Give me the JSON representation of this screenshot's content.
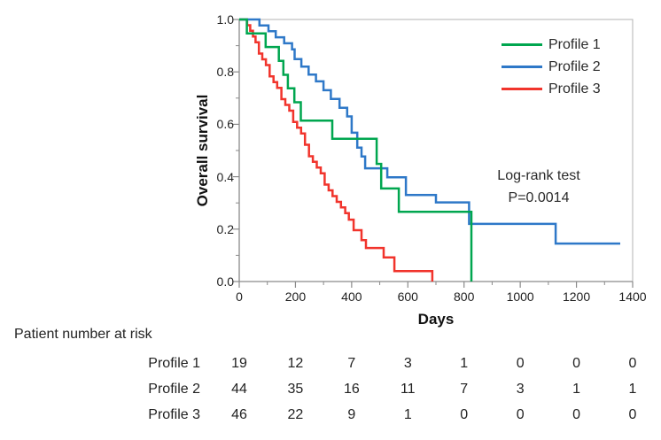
{
  "chart_data": {
    "type": "line",
    "subtype": "kaplan-meier-step-survival",
    "title": "",
    "xlabel": "Days",
    "ylabel": "Overall survival",
    "xlim": [
      0,
      1400
    ],
    "ylim": [
      0.0,
      1.0
    ],
    "grid": false,
    "x_ticks": [
      0,
      200,
      400,
      600,
      800,
      1000,
      1200,
      1400
    ],
    "x_tick_labels": [
      "0",
      "200",
      "400",
      "600",
      "800",
      "1000",
      "1200",
      "1400"
    ],
    "x_minor_ticks": [
      100,
      300,
      500,
      700,
      900,
      1100,
      1300
    ],
    "y_ticks": [
      1.0,
      0.8,
      0.6,
      0.4,
      0.2,
      0.0
    ],
    "y_tick_labels": [
      "1.0",
      "0.8",
      "0.6",
      "0.4",
      "0.2",
      "0.0"
    ],
    "y_minor_ticks": [
      0.9,
      0.7,
      0.5,
      0.3,
      0.1
    ],
    "frame_color": "#b3b3b3",
    "axis_color": "#8a8a8a",
    "legend": {
      "position": "top-right",
      "entries": [
        {
          "label": "Profile 1",
          "color": "#00a64f"
        },
        {
          "label": "Profile 2",
          "color": "#2e78c8"
        },
        {
          "label": "Profile 3",
          "color": "#f1342c"
        }
      ]
    },
    "annotation": {
      "lines": [
        "Log-rank test",
        "P=0.0014"
      ]
    },
    "series": [
      {
        "name": "Profile 1",
        "color": "#00a64f",
        "end": "event",
        "points": [
          [
            27,
            0.947
          ],
          [
            94,
            0.895
          ],
          [
            141,
            0.842
          ],
          [
            157,
            0.789
          ],
          [
            173,
            0.737
          ],
          [
            196,
            0.684
          ],
          [
            219,
            0.614
          ],
          [
            331,
            0.545
          ],
          [
            489,
            0.449
          ],
          [
            505,
            0.355
          ],
          [
            568,
            0.266
          ],
          [
            826,
            0.0
          ]
        ]
      },
      {
        "name": "Profile 2",
        "color": "#2e78c8",
        "end": "censored",
        "points": [
          [
            72,
            0.977
          ],
          [
            104,
            0.955
          ],
          [
            130,
            0.932
          ],
          [
            160,
            0.909
          ],
          [
            188,
            0.886
          ],
          [
            197,
            0.849
          ],
          [
            221,
            0.82
          ],
          [
            247,
            0.79
          ],
          [
            273,
            0.764
          ],
          [
            300,
            0.73
          ],
          [
            326,
            0.697
          ],
          [
            357,
            0.663
          ],
          [
            384,
            0.63
          ],
          [
            400,
            0.568
          ],
          [
            420,
            0.511
          ],
          [
            435,
            0.477
          ],
          [
            448,
            0.432
          ],
          [
            527,
            0.398
          ],
          [
            593,
            0.33
          ],
          [
            700,
            0.302
          ],
          [
            818,
            0.22
          ],
          [
            1126,
            0.145
          ],
          [
            1356,
            0.145
          ]
        ]
      },
      {
        "name": "Profile 3",
        "color": "#f1342c",
        "end": "event",
        "points": [
          [
            28,
            0.978
          ],
          [
            39,
            0.957
          ],
          [
            49,
            0.935
          ],
          [
            58,
            0.913
          ],
          [
            70,
            0.87
          ],
          [
            82,
            0.848
          ],
          [
            95,
            0.826
          ],
          [
            108,
            0.783
          ],
          [
            122,
            0.761
          ],
          [
            135,
            0.739
          ],
          [
            150,
            0.696
          ],
          [
            164,
            0.674
          ],
          [
            178,
            0.652
          ],
          [
            192,
            0.609
          ],
          [
            206,
            0.587
          ],
          [
            220,
            0.565
          ],
          [
            234,
            0.522
          ],
          [
            248,
            0.478
          ],
          [
            262,
            0.457
          ],
          [
            276,
            0.435
          ],
          [
            290,
            0.413
          ],
          [
            304,
            0.37
          ],
          [
            318,
            0.348
          ],
          [
            332,
            0.326
          ],
          [
            347,
            0.304
          ],
          [
            362,
            0.283
          ],
          [
            377,
            0.261
          ],
          [
            390,
            0.236
          ],
          [
            407,
            0.196
          ],
          [
            435,
            0.158
          ],
          [
            451,
            0.128
          ],
          [
            514,
            0.092
          ],
          [
            552,
            0.04
          ],
          [
            687,
            0.0
          ]
        ]
      }
    ]
  },
  "risk_table": {
    "title": "Patient number at risk",
    "time_points": [
      0,
      200,
      400,
      600,
      800,
      1000,
      1200,
      1400
    ],
    "rows": [
      {
        "label": "Profile 1",
        "counts": [
          "19",
          "12",
          "7",
          "3",
          "1",
          "0",
          "0",
          "0"
        ]
      },
      {
        "label": "Profile 2",
        "counts": [
          "44",
          "35",
          "16",
          "11",
          "7",
          "3",
          "1",
          "1"
        ]
      },
      {
        "label": "Profile 3",
        "counts": [
          "46",
          "22",
          "9",
          "1",
          "0",
          "0",
          "0",
          "0"
        ]
      }
    ]
  }
}
